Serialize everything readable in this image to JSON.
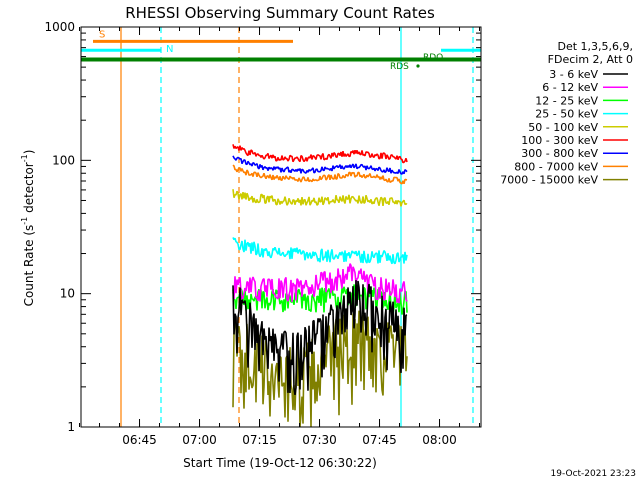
{
  "chart_data": {
    "type": "line",
    "title": "RHESSI Observing Summary Count Rates",
    "xlabel": "Start Time (19-Oct-12 06:30:22)",
    "ylabel_parts": [
      "Count Rate (s",
      "-1",
      " detector",
      "-1",
      ")"
    ],
    "yscale": "log",
    "ylim": [
      1,
      1000
    ],
    "xlim_minutes": [
      0,
      100
    ],
    "xticks": [
      {
        "label": "06:45",
        "min": 14.63
      },
      {
        "label": "07:00",
        "min": 29.63
      },
      {
        "label": "07:15",
        "min": 44.63
      },
      {
        "label": "07:30",
        "min": 59.63
      },
      {
        "label": "07:45",
        "min": 74.63
      },
      {
        "label": "08:00",
        "min": 89.63
      }
    ],
    "yticks": [
      {
        "label": "1",
        "value": 1
      },
      {
        "label": "10",
        "value": 10
      },
      {
        "label": "100",
        "value": 100
      },
      {
        "label": "1000",
        "value": 1000
      }
    ],
    "data_start_min": 38,
    "data_end_min": 81.5,
    "series": [
      {
        "name": "3 - 6 keV",
        "color": "#000000",
        "profile": [
          8.5,
          6.5,
          4.8,
          3.8,
          3.5,
          3.4,
          3.6,
          4.0,
          4.6,
          5.5,
          6.8,
          8.0,
          8.5,
          7.5,
          6.0,
          5.5,
          5.0
        ],
        "jitter": 0.55
      },
      {
        "name": "6 - 12 keV",
        "color": "#ff00ff",
        "profile": [
          11.5,
          11.2,
          11.0,
          10.8,
          10.8,
          10.9,
          11.0,
          11.3,
          11.8,
          12.5,
          13.5,
          14.5,
          13.2,
          11.5,
          10.8,
          10.5,
          10.3
        ],
        "jitter": 0.22
      },
      {
        "name": "12 - 25 keV",
        "color": "#00ff00",
        "profile": [
          9.3,
          9.1,
          9.0,
          8.9,
          8.9,
          9.0,
          9.0,
          9.1,
          9.2,
          9.4,
          9.6,
          9.8,
          9.5,
          9.1,
          8.9,
          8.7,
          8.5
        ],
        "jitter": 0.22
      },
      {
        "name": "25 - 50 keV",
        "color": "#00ffff",
        "profile": [
          24.5,
          23.0,
          22.0,
          21.0,
          20.3,
          20.0,
          19.8,
          19.6,
          19.5,
          19.5,
          19.4,
          19.3,
          19.2,
          19.0,
          18.9,
          18.8,
          18.7
        ],
        "jitter": 0.12
      },
      {
        "name": "50 - 100 keV",
        "color": "#cccc00",
        "profile": [
          57,
          54,
          52,
          51,
          50,
          50,
          49.5,
          49.5,
          50,
          50.5,
          51,
          51.5,
          51,
          50,
          49,
          48,
          47
        ],
        "jitter": 0.08
      },
      {
        "name": "100 - 300 keV",
        "color": "#ff0000",
        "profile": [
          128,
          118,
          110,
          107,
          105,
          104,
          103,
          104,
          106,
          109,
          112,
          113,
          112,
          110,
          107,
          104,
          101
        ],
        "jitter": 0.06
      },
      {
        "name": "300 - 800 keV",
        "color": "#0000ff",
        "profile": [
          105,
          97,
          91,
          88,
          86,
          85,
          84,
          84,
          85,
          87,
          89,
          90,
          89,
          87,
          85,
          83,
          81
        ],
        "jitter": 0.05
      },
      {
        "name": "800 - 7000 keV",
        "color": "#ff8000",
        "profile": [
          88,
          82,
          78,
          76,
          74,
          73,
          72,
          72,
          73,
          75,
          77,
          78,
          77,
          75,
          73,
          71,
          69
        ],
        "jitter": 0.05
      },
      {
        "name": "7000 - 15000 keV",
        "color": "#808000",
        "profile": [
          4.0,
          3.8,
          3.2,
          2.8,
          2.6,
          2.5,
          2.4,
          2.6,
          3.0,
          3.5,
          4.2,
          4.6,
          4.5,
          4.3,
          4.0,
          3.8,
          3.6
        ],
        "jitter": 0.7
      }
    ],
    "legend": {
      "header": [
        "Det 1,3,5,6,9,",
        "FDecim 2, Att 0"
      ],
      "position": "right"
    },
    "annotations": {
      "s_label": "S",
      "n_label": "N",
      "rdo_label": "RDO",
      "rds_label": "RDS",
      "s_bar_range": [
        3,
        53
      ],
      "s_bar_value": 780,
      "n_bar_ranges": [
        [
          -10,
          20
        ],
        [
          90,
          110
        ]
      ],
      "n_bar_value": 670,
      "green_bar_value": 570,
      "vertical_lines": [
        {
          "min": 10,
          "color": "#ff8000",
          "style": "solid"
        },
        {
          "min": 20,
          "color": "#00ffff",
          "style": "dashed"
        },
        {
          "min": 39.5,
          "color": "#ff8000",
          "style": "dashed"
        },
        {
          "min": 80,
          "color": "#00ffff",
          "style": "solid"
        },
        {
          "min": 98,
          "color": "#00ffff",
          "style": "dashed"
        }
      ]
    },
    "footer_date": "19-Oct-2021 23:23",
    "colors": {
      "axes": "#000000",
      "background": "#ffffff",
      "green_bar": "#008000"
    }
  }
}
